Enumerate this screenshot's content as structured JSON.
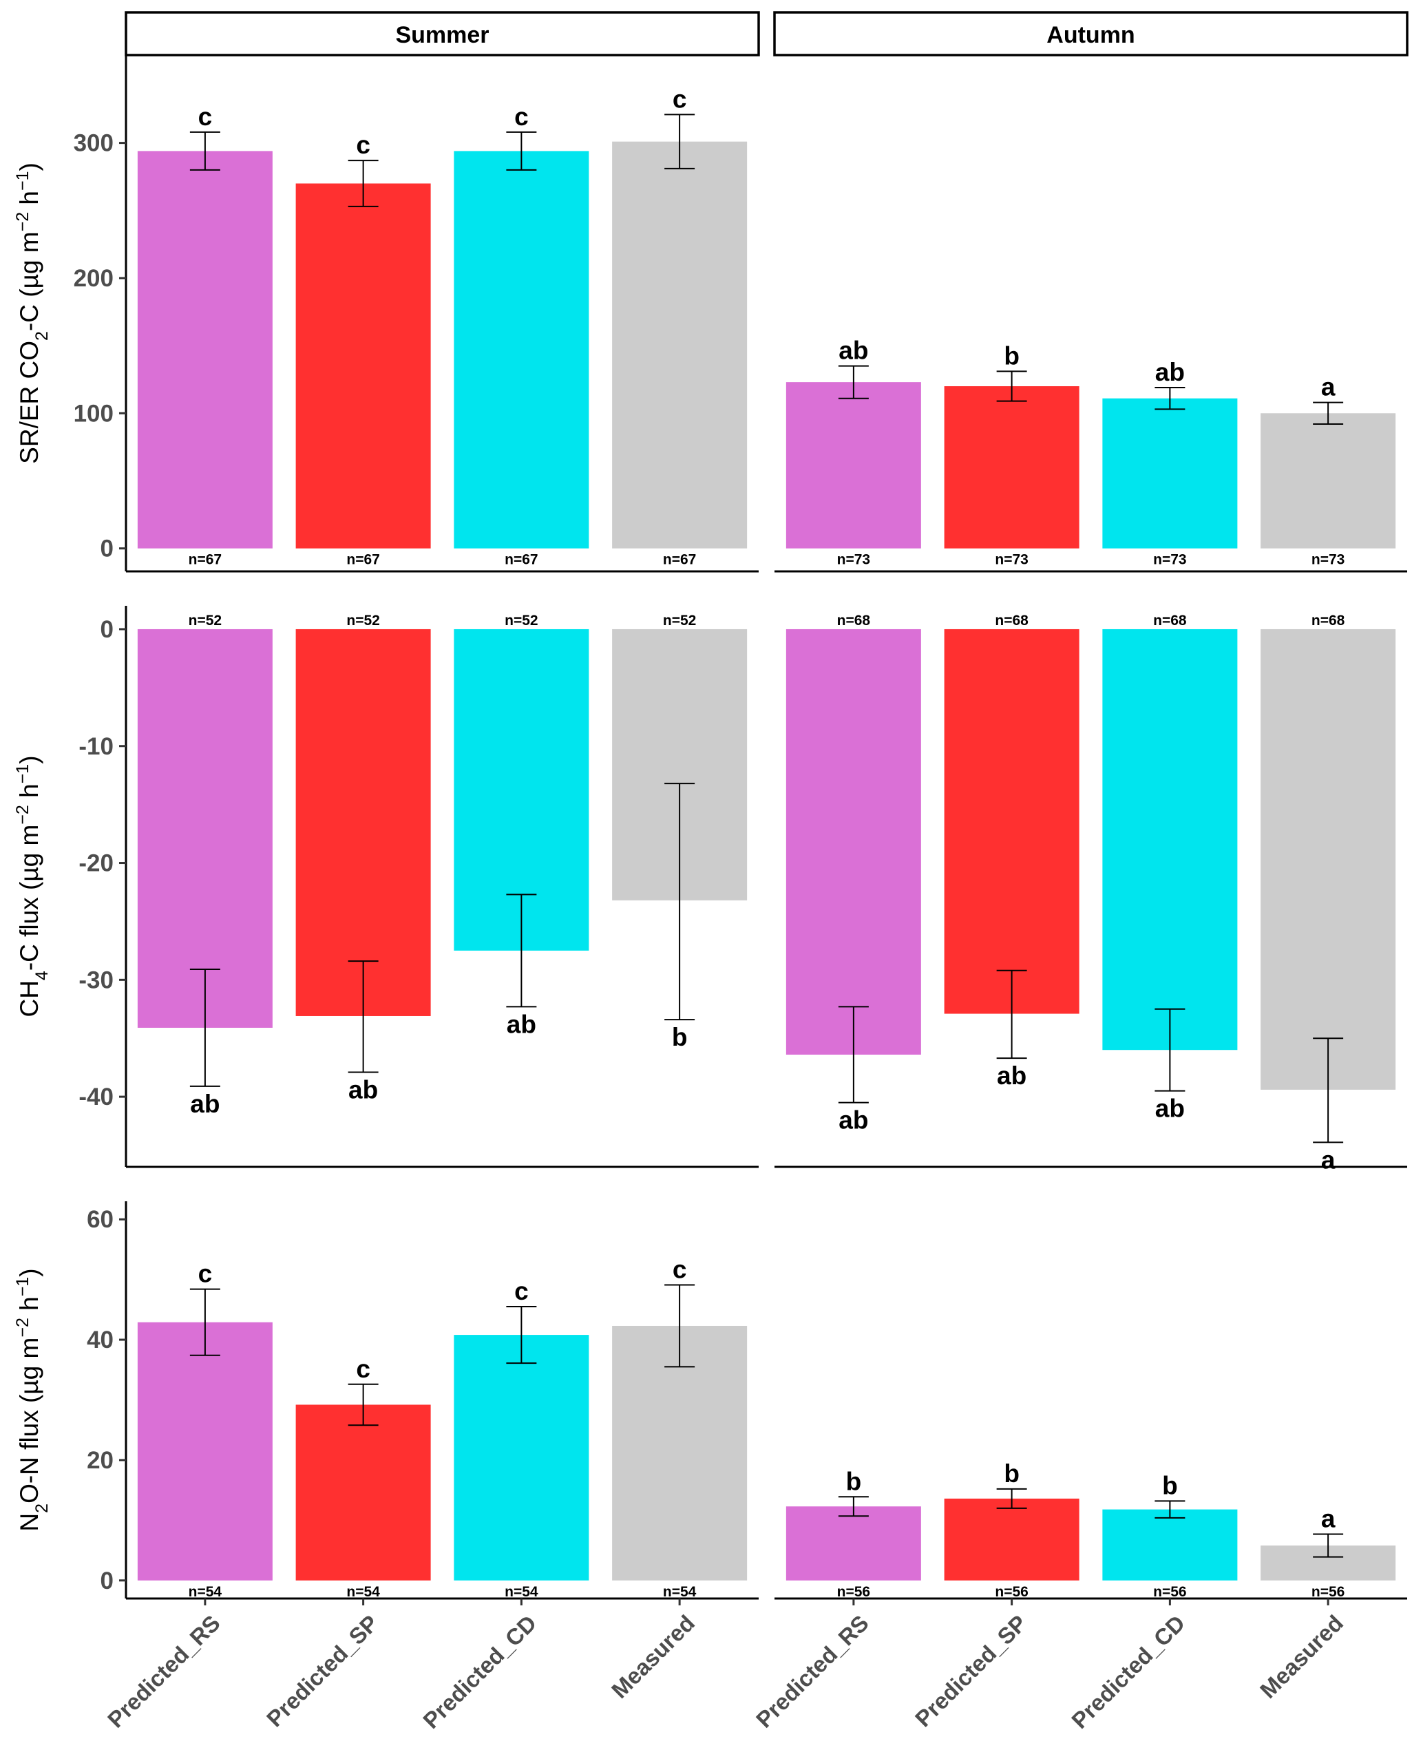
{
  "strips": [
    "Summer",
    "Autumn"
  ],
  "categories": [
    "Predicted_RS",
    "Predicted_SP",
    "Predicted_CD",
    "Measured"
  ],
  "colors": {
    "Predicted_RS": "#da70d6",
    "Predicted_SP": "#ff3030",
    "Predicted_CD": "#00e5ee",
    "Measured": "#cccccc"
  },
  "chart_data": [
    {
      "type": "bar",
      "row": 1,
      "ylabel_parts": [
        "SR/ER CO",
        "2",
        "-C (µg m",
        "−2",
        " h",
        "−1",
        ")"
      ],
      "ylim": [
        -17,
        365
      ],
      "yticks": [
        0,
        100,
        200,
        300
      ],
      "panels": [
        {
          "strip": "Summer",
          "values": [
            294,
            270,
            294,
            301
          ],
          "err_low": [
            280,
            253,
            280,
            281
          ],
          "err_high": [
            308,
            287,
            308,
            321
          ],
          "letters": [
            "c",
            "c",
            "c",
            "c"
          ],
          "n": [
            "n=67",
            "n=67",
            "n=67",
            "n=67"
          ]
        },
        {
          "strip": "Autumn",
          "values": [
            123,
            120,
            111,
            100
          ],
          "err_low": [
            111,
            109,
            103,
            92
          ],
          "err_high": [
            135,
            131,
            119,
            108
          ],
          "letters": [
            "ab",
            "b",
            "ab",
            "a"
          ],
          "n": [
            "n=73",
            "n=73",
            "n=73",
            "n=73"
          ]
        }
      ]
    },
    {
      "type": "bar",
      "row": 2,
      "ylabel_parts": [
        "CH",
        "4",
        "-C flux (µg m",
        "−2",
        " h",
        "−1",
        ")"
      ],
      "ylim": [
        -46,
        2
      ],
      "yticks": [
        0,
        -10,
        -20,
        -30,
        -40
      ],
      "panels": [
        {
          "strip": "Summer",
          "values": [
            -34.1,
            -33.1,
            -27.5,
            -23.2
          ],
          "err_low": [
            -39.1,
            -37.9,
            -32.3,
            -33.4
          ],
          "err_high": [
            -29.1,
            -28.4,
            -22.7,
            -13.2
          ],
          "letters": [
            "ab",
            "ab",
            "ab",
            "b"
          ],
          "n": [
            "n=52",
            "n=52",
            "n=52",
            "n=52"
          ]
        },
        {
          "strip": "Autumn",
          "values": [
            -36.4,
            -32.9,
            -36.0,
            -39.4
          ],
          "err_low": [
            -40.5,
            -36.7,
            -39.5,
            -43.9
          ],
          "err_high": [
            -32.3,
            -29.2,
            -32.5,
            -35.0
          ],
          "letters": [
            "ab",
            "ab",
            "ab",
            "a"
          ],
          "n": [
            "n=68",
            "n=68",
            "n=68",
            "n=68"
          ]
        }
      ]
    },
    {
      "type": "bar",
      "row": 3,
      "ylabel_parts": [
        "N",
        "2",
        "O-N flux (µg m",
        "−2",
        " h",
        "−1",
        ")"
      ],
      "ylim": [
        -3,
        63
      ],
      "yticks": [
        0,
        20,
        40,
        60
      ],
      "panels": [
        {
          "strip": "Summer",
          "values": [
            42.9,
            29.2,
            40.8,
            42.3
          ],
          "err_low": [
            37.4,
            25.8,
            36.1,
            35.5
          ],
          "err_high": [
            48.4,
            32.6,
            45.5,
            49.1
          ],
          "letters": [
            "c",
            "c",
            "c",
            "c"
          ],
          "n": [
            "n=54",
            "n=54",
            "n=54",
            "n=54"
          ]
        },
        {
          "strip": "Autumn",
          "values": [
            12.3,
            13.6,
            11.8,
            5.8
          ],
          "err_low": [
            10.7,
            12.0,
            10.4,
            3.9
          ],
          "err_high": [
            13.9,
            15.2,
            13.2,
            7.7
          ],
          "letters": [
            "b",
            "b",
            "b",
            "a"
          ],
          "n": [
            "n=56",
            "n=56",
            "n=56",
            "n=56"
          ]
        }
      ]
    }
  ]
}
